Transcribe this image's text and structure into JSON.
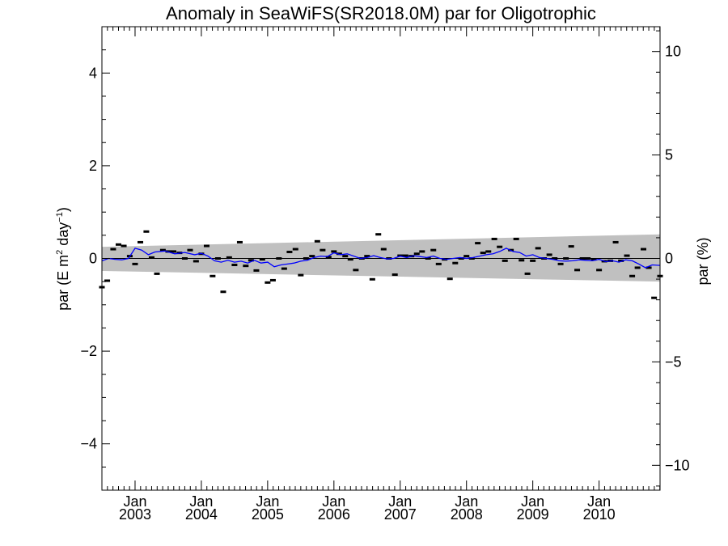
{
  "chart_data": {
    "type": "scatter",
    "title": "Anomaly in SeaWiFS(SR2018.0M) par for Oligotrophic",
    "ylabel_left": {
      "prefix": "par (E m",
      "sup1": "2",
      "middle": " day",
      "sup2": "−1",
      "suffix": ")"
    },
    "ylabel_right": "par (%)",
    "xlim": [
      2002.5,
      2010.92
    ],
    "ylim_left": [
      -5,
      5
    ],
    "ylim_right": [
      -11.2,
      11.2
    ],
    "yticks_left": [
      {
        "value": -4,
        "label": "−4"
      },
      {
        "value": -2,
        "label": "−2"
      },
      {
        "value": 0,
        "label": "0"
      },
      {
        "value": 2,
        "label": "2"
      },
      {
        "value": 4,
        "label": "4"
      }
    ],
    "yticks_right": [
      {
        "value": -10,
        "label": "−10"
      },
      {
        "value": -5,
        "label": "−5"
      },
      {
        "value": 0,
        "label": "0"
      },
      {
        "value": 5,
        "label": "5"
      },
      {
        "value": 10,
        "label": "10"
      }
    ],
    "xticks": [
      {
        "value": 2003.0,
        "month": "Jan",
        "year": "2003"
      },
      {
        "value": 2004.0,
        "month": "Jan",
        "year": "2004"
      },
      {
        "value": 2005.0,
        "month": "Jan",
        "year": "2005"
      },
      {
        "value": 2006.0,
        "month": "Jan",
        "year": "2006"
      },
      {
        "value": 2007.0,
        "month": "Jan",
        "year": "2007"
      },
      {
        "value": 2008.0,
        "month": "Jan",
        "year": "2008"
      },
      {
        "value": 2009.0,
        "month": "Jan",
        "year": "2009"
      },
      {
        "value": 2010.0,
        "month": "Jan",
        "year": "2010"
      }
    ],
    "grid": false,
    "colors": {
      "band": "#c0c0c0",
      "running_mean": "#0000ff",
      "points": "#000000",
      "zero_line": "#000000"
    },
    "uncertainty_band": {
      "x": [
        2002.5,
        2010.92
      ],
      "upper": [
        0.25,
        0.52
      ],
      "lower": [
        -0.27,
        -0.5
      ]
    },
    "monthly_anomalies": {
      "x": [
        2002.5,
        2002.58,
        2002.67,
        2002.75,
        2002.83,
        2002.92,
        2003.0,
        2003.08,
        2003.17,
        2003.25,
        2003.33,
        2003.42,
        2003.5,
        2003.58,
        2003.67,
        2003.75,
        2003.83,
        2003.92,
        2004.0,
        2004.08,
        2004.17,
        2004.25,
        2004.33,
        2004.42,
        2004.5,
        2004.58,
        2004.67,
        2004.75,
        2004.83,
        2004.92,
        2005.0,
        2005.08,
        2005.17,
        2005.25,
        2005.33,
        2005.42,
        2005.5,
        2005.58,
        2005.67,
        2005.75,
        2005.83,
        2005.92,
        2006.0,
        2006.08,
        2006.17,
        2006.25,
        2006.33,
        2006.42,
        2006.5,
        2006.58,
        2006.67,
        2006.75,
        2006.83,
        2006.92,
        2007.0,
        2007.08,
        2007.17,
        2007.25,
        2007.33,
        2007.42,
        2007.5,
        2007.58,
        2007.67,
        2007.75,
        2007.83,
        2007.92,
        2008.0,
        2008.08,
        2008.17,
        2008.25,
        2008.33,
        2008.42,
        2008.5,
        2008.58,
        2008.67,
        2008.75,
        2008.83,
        2008.92,
        2009.0,
        2009.08,
        2009.17,
        2009.25,
        2009.33,
        2009.42,
        2009.5,
        2009.58,
        2009.67,
        2009.75,
        2009.83,
        2009.92,
        2010.0,
        2010.08,
        2010.17,
        2010.25,
        2010.33,
        2010.42,
        2010.5,
        2010.58,
        2010.67,
        2010.75,
        2010.83,
        2010.92
      ],
      "y": [
        -0.62,
        -0.48,
        0.2,
        0.3,
        0.27,
        0.05,
        -0.12,
        0.35,
        0.58,
        0.02,
        -0.33,
        0.18,
        0.15,
        0.15,
        0.12,
        0.0,
        0.18,
        -0.06,
        0.1,
        0.27,
        -0.38,
        0.0,
        -0.72,
        0.02,
        -0.14,
        0.35,
        -0.16,
        -0.04,
        -0.26,
        -0.02,
        -0.52,
        -0.47,
        0.0,
        -0.22,
        0.14,
        0.2,
        -0.36,
        0.0,
        0.05,
        0.37,
        0.18,
        0.03,
        0.15,
        0.1,
        0.05,
        -0.02,
        -0.25,
        0.0,
        0.05,
        -0.45,
        0.52,
        0.2,
        0.0,
        -0.35,
        0.06,
        0.06,
        0.05,
        0.1,
        0.15,
        0.0,
        0.18,
        -0.12,
        -0.02,
        -0.44,
        -0.1,
        0.0,
        0.05,
        0.0,
        0.33,
        0.12,
        0.15,
        0.42,
        0.25,
        -0.05,
        0.18,
        0.42,
        -0.04,
        -0.33,
        -0.05,
        0.22,
        0.0,
        0.08,
        0.0,
        -0.12,
        0.0,
        0.26,
        -0.25,
        0.0,
        0.0,
        -0.02,
        -0.25,
        -0.06,
        -0.05,
        0.35,
        -0.05,
        0.06,
        -0.38,
        -0.2,
        0.2,
        -0.2,
        -0.85,
        -0.38
      ]
    },
    "running_mean": {
      "x": [
        2002.5,
        2002.6,
        2002.7,
        2002.8,
        2002.9,
        2003.0,
        2003.1,
        2003.2,
        2003.3,
        2003.45,
        2003.6,
        2003.75,
        2003.9,
        2004.0,
        2004.1,
        2004.2,
        2004.3,
        2004.4,
        2004.5,
        2004.6,
        2004.7,
        2004.8,
        2004.9,
        2005.0,
        2005.1,
        2005.2,
        2005.3,
        2005.4,
        2005.5,
        2005.6,
        2005.7,
        2005.8,
        2005.9,
        2006.0,
        2006.1,
        2006.2,
        2006.3,
        2006.4,
        2006.5,
        2006.6,
        2006.7,
        2006.8,
        2006.9,
        2007.0,
        2007.1,
        2007.2,
        2007.3,
        2007.4,
        2007.5,
        2007.6,
        2007.7,
        2007.8,
        2007.9,
        2008.0,
        2008.1,
        2008.2,
        2008.3,
        2008.4,
        2008.5,
        2008.6,
        2008.7,
        2008.8,
        2008.9,
        2009.0,
        2009.1,
        2009.2,
        2009.3,
        2009.4,
        2009.5,
        2009.6,
        2009.7,
        2009.8,
        2009.9,
        2010.0,
        2010.1,
        2010.2,
        2010.3,
        2010.4,
        2010.5,
        2010.6,
        2010.7,
        2010.8,
        2010.92
      ],
      "y": [
        -0.05,
        0.0,
        -0.02,
        -0.03,
        0.0,
        0.22,
        0.18,
        0.08,
        0.14,
        0.16,
        0.1,
        0.13,
        0.08,
        0.11,
        0.05,
        -0.05,
        -0.08,
        -0.04,
        -0.08,
        -0.06,
        -0.1,
        -0.04,
        -0.1,
        -0.08,
        -0.18,
        -0.14,
        -0.12,
        -0.1,
        -0.06,
        -0.04,
        0.02,
        0.05,
        0.04,
        0.12,
        0.08,
        0.1,
        0.05,
        0.0,
        0.02,
        0.06,
        0.02,
        -0.01,
        0.0,
        0.05,
        0.02,
        0.06,
        0.04,
        0.02,
        0.05,
        0.0,
        -0.02,
        0.0,
        0.02,
        0.0,
        0.02,
        0.05,
        0.08,
        0.1,
        0.15,
        0.22,
        0.15,
        0.13,
        0.05,
        0.08,
        0.02,
        0.0,
        -0.02,
        -0.05,
        -0.06,
        -0.05,
        -0.03,
        -0.04,
        -0.05,
        -0.02,
        -0.07,
        -0.05,
        -0.08,
        -0.03,
        -0.05,
        -0.12,
        -0.2,
        -0.14,
        -0.15
      ]
    }
  }
}
